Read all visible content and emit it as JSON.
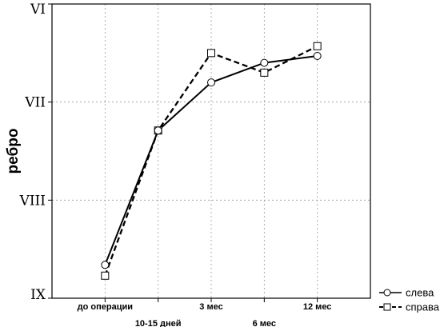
{
  "chart_data": {
    "type": "line",
    "ylabel": "ребро",
    "categories": [
      "до операции",
      "10-15 дней",
      "3 мес",
      "6 мес",
      "12 мес"
    ],
    "y_ticks": [
      {
        "label": "VI",
        "value": 6
      },
      {
        "label": "VII",
        "value": 7
      },
      {
        "label": "VIII",
        "value": 8
      },
      {
        "label": "IX",
        "value": 9
      }
    ],
    "y_direction": "inverted",
    "ylim": [
      6,
      9
    ],
    "grid": true,
    "legend_position": "bottom-right",
    "series": [
      {
        "name": "слева",
        "marker": "circle",
        "line": "solid",
        "values": [
          8.66,
          7.29,
          6.8,
          6.6,
          6.53
        ]
      },
      {
        "name": "справа",
        "marker": "square",
        "line": "dashed",
        "values": [
          8.77,
          7.29,
          6.5,
          6.7,
          6.43
        ]
      }
    ]
  }
}
